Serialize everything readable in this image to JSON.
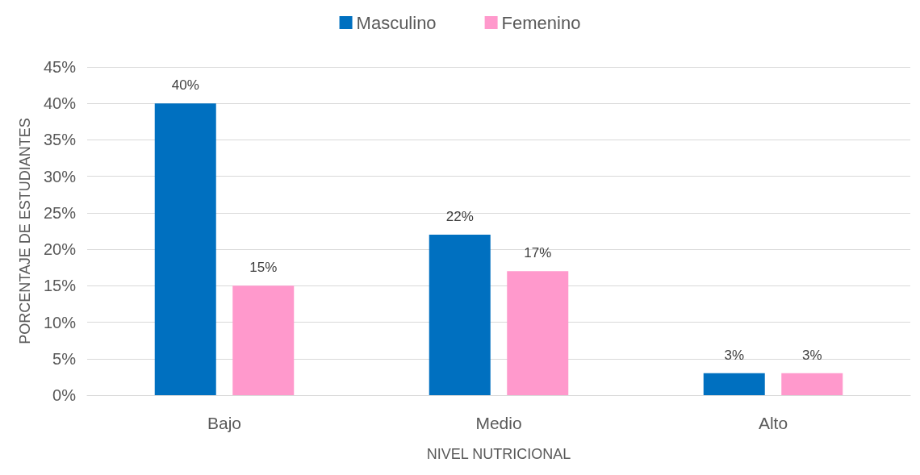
{
  "chart_data": {
    "type": "bar",
    "xlabel": "NIVEL NUTRICIONAL",
    "ylabel": "PORCENTAJE DE ESTUDIANTES",
    "categories": [
      "Bajo",
      "Medio",
      "Alto"
    ],
    "series": [
      {
        "name": "Masculino",
        "color": "#0070c0",
        "values": [
          40,
          22,
          3
        ],
        "value_labels": [
          "40%",
          "22%",
          "3%"
        ]
      },
      {
        "name": "Femenino",
        "color": "#ff99cc",
        "values": [
          15,
          17,
          3
        ],
        "value_labels": [
          "15%",
          "17%",
          "3%"
        ]
      }
    ],
    "ylim": [
      0,
      45
    ],
    "yticks": [
      {
        "value": 0,
        "label": "0%"
      },
      {
        "value": 5,
        "label": "5%"
      },
      {
        "value": 10,
        "label": "10%"
      },
      {
        "value": 15,
        "label": "15%"
      },
      {
        "value": 20,
        "label": "20%"
      },
      {
        "value": 25,
        "label": "25%"
      },
      {
        "value": 30,
        "label": "30%"
      },
      {
        "value": 35,
        "label": "35%"
      },
      {
        "value": 40,
        "label": "40%"
      },
      {
        "value": 45,
        "label": "45%"
      }
    ],
    "grid": "y",
    "legend": "top"
  }
}
